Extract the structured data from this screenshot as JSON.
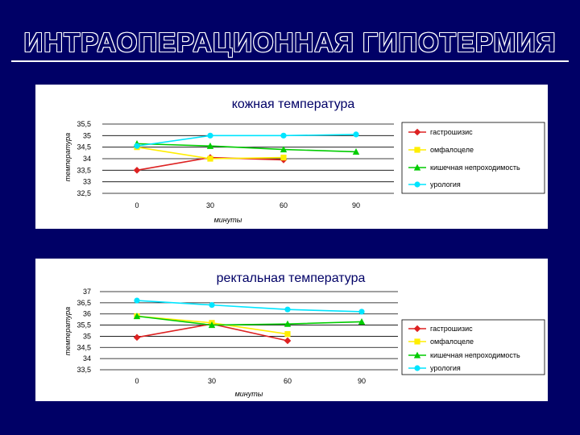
{
  "slide": {
    "title": "ИНТРАОПЕРАЦИОННАЯ ГИПОТЕРМИЯ"
  },
  "chart_data": [
    {
      "type": "line",
      "title": "кожная температура",
      "xlabel": "минуты",
      "ylabel": "температура",
      "categories": [
        "0",
        "30",
        "60",
        "90"
      ],
      "yticks": [
        "32,5",
        "33",
        "33,5",
        "34",
        "34,5",
        "35",
        "35,5"
      ],
      "ylim": [
        32.5,
        35.5
      ],
      "grid": true,
      "legend_position": "right",
      "series": [
        {
          "name": "гастрошизис",
          "color": "#dd2222",
          "marker": "diamond",
          "values": [
            33.5,
            34.05,
            33.95,
            null
          ]
        },
        {
          "name": "омфалоцеле",
          "color": "#ffee00",
          "marker": "square",
          "values": [
            34.5,
            34.0,
            34.05,
            null
          ]
        },
        {
          "name": "кишечная непроходимость",
          "color": "#00cc00",
          "marker": "triangle",
          "values": [
            34.65,
            34.55,
            34.4,
            34.3
          ]
        },
        {
          "name": "урология",
          "color": "#00e5ff",
          "marker": "circle",
          "values": [
            34.55,
            35.0,
            35.0,
            35.05
          ]
        }
      ]
    },
    {
      "type": "line",
      "title": "ректальная температура",
      "xlabel": "минуты",
      "ylabel": "температура",
      "categories": [
        "0",
        "30",
        "60",
        "90"
      ],
      "yticks": [
        "33,5",
        "34",
        "34,5",
        "35",
        "35,5",
        "36",
        "36,5",
        "37"
      ],
      "ylim": [
        33.5,
        37
      ],
      "grid": true,
      "legend_position": "right",
      "series": [
        {
          "name": "гастрошизис",
          "color": "#dd2222",
          "marker": "diamond",
          "values": [
            34.95,
            35.55,
            34.8,
            null
          ]
        },
        {
          "name": "омфалоцеле",
          "color": "#ffee00",
          "marker": "square",
          "values": [
            35.9,
            35.6,
            35.1,
            null
          ]
        },
        {
          "name": "кишечная непроходимость",
          "color": "#00cc00",
          "marker": "triangle",
          "values": [
            35.9,
            35.5,
            35.55,
            35.65
          ]
        },
        {
          "name": "урология",
          "color": "#00e5ff",
          "marker": "circle",
          "values": [
            36.6,
            36.4,
            36.2,
            36.1
          ]
        }
      ]
    }
  ]
}
